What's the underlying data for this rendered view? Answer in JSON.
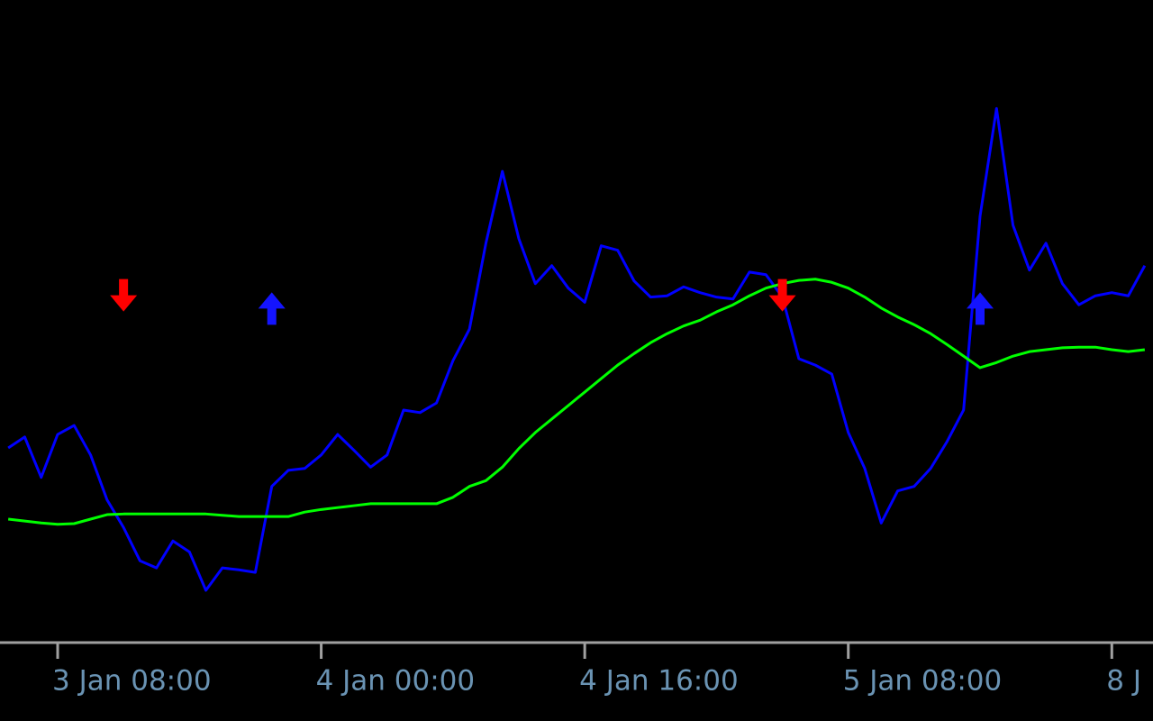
{
  "chart_data": {
    "type": "line",
    "ylim": [
      0,
      100
    ],
    "grid": false,
    "categories": [
      null,
      null,
      null,
      "3 Jan 08:00",
      null,
      null,
      null,
      null,
      null,
      null,
      null,
      null,
      null,
      null,
      null,
      null,
      null,
      null,
      null,
      "4 Jan 00:00",
      null,
      null,
      null,
      null,
      null,
      null,
      null,
      null,
      null,
      null,
      null,
      null,
      null,
      null,
      null,
      "4 Jan 16:00",
      null,
      null,
      null,
      null,
      null,
      null,
      null,
      null,
      null,
      null,
      null,
      null,
      null,
      null,
      null,
      "5 Jan 08:00",
      null,
      null,
      null,
      null,
      null,
      null,
      null,
      null,
      null,
      null,
      null,
      null,
      null,
      null,
      null,
      "8 J",
      null,
      null
    ],
    "series": [
      {
        "color": "#0000ff",
        "marker": "line",
        "values": [
          30.2,
          31.9,
          25.6,
          32.3,
          33.7,
          29.1,
          22.1,
          17.8,
          12.6,
          11.5,
          15.7,
          14.0,
          8.0,
          11.5,
          11.2,
          10.8,
          24.2,
          26.7,
          27.0,
          29.1,
          32.3,
          29.8,
          27.2,
          29.1,
          36.1,
          35.7,
          37.2,
          43.8,
          48.7,
          62.1,
          73.3,
          62.8,
          55.8,
          58.6,
          55.1,
          52.9,
          61.7,
          61.0,
          56.2,
          53.7,
          53.9,
          55.3,
          54.4,
          53.7,
          53.4,
          57.6,
          57.2,
          53.7,
          44.1,
          43.1,
          41.7,
          32.6,
          27.0,
          18.5,
          23.5,
          24.2,
          27.0,
          31.2,
          36.1,
          66.3,
          83.1,
          64.9,
          57.9,
          62.1,
          55.8,
          52.5,
          53.9,
          54.4,
          53.9,
          58.6
        ]
      },
      {
        "color": "#00ff00",
        "marker": "line",
        "values": [
          19.1,
          18.8,
          18.5,
          18.3,
          18.4,
          19.1,
          19.8,
          19.9,
          19.9,
          19.9,
          19.9,
          19.9,
          19.9,
          19.7,
          19.5,
          19.5,
          19.5,
          19.5,
          20.2,
          20.6,
          20.9,
          21.2,
          21.5,
          21.5,
          21.5,
          21.5,
          21.5,
          22.5,
          24.2,
          25.1,
          27.2,
          30.1,
          32.6,
          34.7,
          36.8,
          38.9,
          41.0,
          43.1,
          44.9,
          46.6,
          48.0,
          49.2,
          50.1,
          51.4,
          52.5,
          53.9,
          55.1,
          55.8,
          56.3,
          56.5,
          56.0,
          55.1,
          53.7,
          52.0,
          50.6,
          49.4,
          48.0,
          46.3,
          44.5,
          42.7,
          43.5,
          44.5,
          45.2,
          45.5,
          45.8,
          45.9,
          45.9,
          45.5,
          45.2,
          45.5
        ]
      },
      {
        "color": "#ff0000",
        "marker": "arrow-down",
        "values": [
          null,
          null,
          null,
          null,
          null,
          null,
          null,
          53.7,
          null,
          null,
          null,
          null,
          null,
          null,
          null,
          null,
          null,
          null,
          null,
          null,
          null,
          null,
          null,
          null,
          null,
          null,
          null,
          null,
          null,
          null,
          null,
          null,
          null,
          null,
          null,
          null,
          null,
          null,
          null,
          null,
          null,
          null,
          null,
          null,
          null,
          null,
          null,
          53.7,
          null,
          null,
          null,
          null,
          null,
          null,
          null,
          null,
          null,
          null,
          null,
          null,
          null,
          null,
          null,
          null,
          null,
          null,
          null,
          null,
          null,
          null
        ]
      },
      {
        "color": "#1414ff",
        "marker": "arrow-up",
        "values": [
          null,
          null,
          null,
          null,
          null,
          null,
          null,
          null,
          null,
          null,
          null,
          null,
          null,
          null,
          null,
          null,
          52.2,
          null,
          null,
          null,
          null,
          null,
          null,
          null,
          null,
          null,
          null,
          null,
          null,
          null,
          null,
          null,
          null,
          null,
          null,
          null,
          null,
          null,
          null,
          null,
          null,
          null,
          null,
          null,
          null,
          null,
          null,
          null,
          null,
          null,
          null,
          null,
          null,
          null,
          null,
          null,
          null,
          null,
          null,
          52.2,
          null,
          null,
          null,
          null,
          null,
          null,
          null,
          null,
          null,
          null
        ]
      }
    ]
  }
}
